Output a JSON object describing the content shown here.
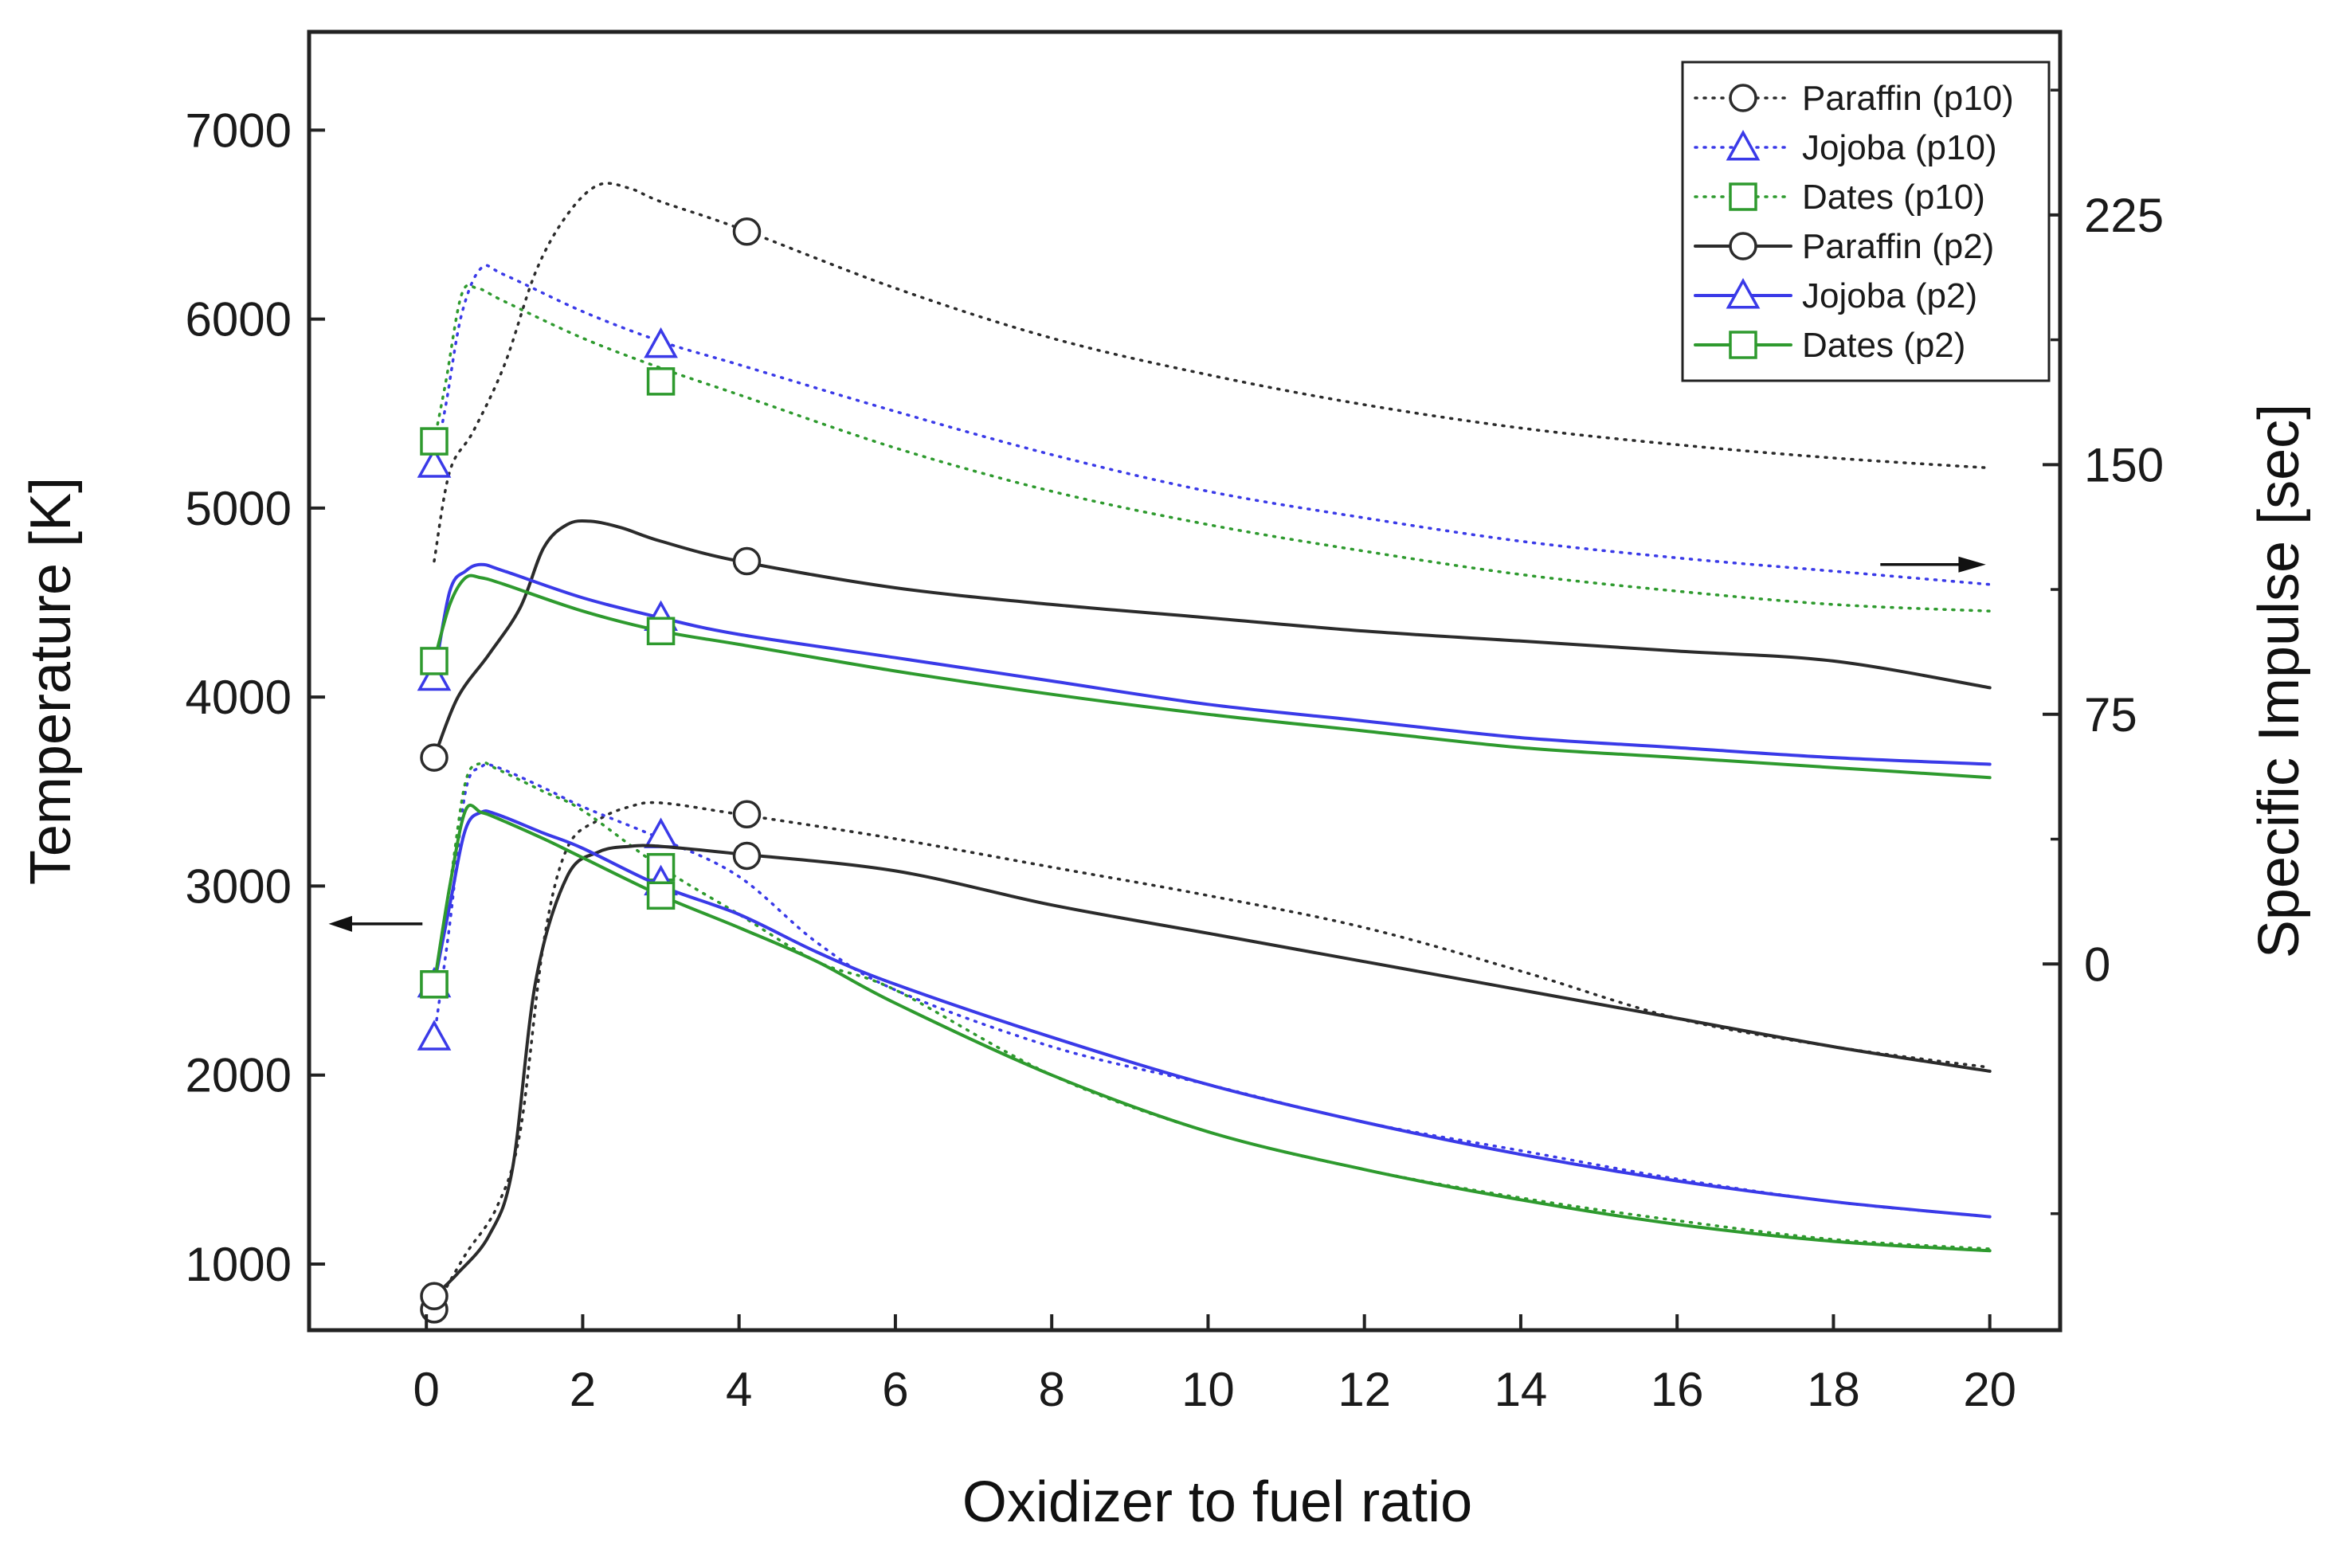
{
  "chart_data": {
    "type": "line",
    "title": "",
    "xlabel": "Oxidizer to fuel ratio",
    "ylabel_left": "Temperature [K]",
    "ylabel_right": "Specific Impulse [sec]",
    "xlim": [
      -1.5,
      20.9
    ],
    "ylim_left": [
      650,
      7520
    ],
    "ylim_right": [
      -110,
      280
    ],
    "x_ticks": [
      0,
      2,
      4,
      6,
      8,
      10,
      12,
      14,
      16,
      18,
      20
    ],
    "x_tick_labels": [
      "0",
      "2",
      "4",
      "6",
      "8",
      "10",
      "12",
      "14",
      "16",
      "18",
      "20"
    ],
    "left_ticks": [
      1000,
      2000,
      3000,
      4000,
      5000,
      6000,
      7000
    ],
    "left_tick_labels": [
      "1000",
      "2000",
      "3000",
      "4000",
      "5000",
      "6000",
      "7000"
    ],
    "right_ticks": [
      0,
      75,
      150,
      225
    ],
    "right_tick_labels": [
      "0",
      "75",
      "150",
      "225"
    ],
    "right_minor_ticks": [
      -75,
      37.5,
      112.5,
      187.5,
      262.5
    ],
    "arrow_left_label": "temperature curves read on left axis",
    "arrow_right_label": "specific impulse curves read on right axis",
    "legend_position": "top-right",
    "colors": {
      "paraffin": "#2b2b2b",
      "jojoba": "#3a3ae8",
      "dates": "#2e9a2e"
    },
    "series": [
      {
        "name": "Paraffin (p10)",
        "quantity": "Specific Impulse",
        "axis": "right",
        "style": "dotted",
        "color": "#2b2b2b",
        "marker": "circle",
        "x": [
          0.1,
          0.3,
          0.6,
          1.0,
          1.4,
          1.8,
          2.2,
          2.6,
          3.0,
          4.0,
          6.0,
          8.0,
          10.0,
          12.0,
          14.0,
          16.0,
          18.0,
          20.0
        ],
        "y": [
          121,
          148,
          160,
          180,
          208,
          225,
          234,
          233,
          229,
          221,
          203,
          188,
          177,
          168,
          161,
          156,
          152,
          149
        ],
        "marker_x": [
          4.1
        ],
        "marker_y": [
          220
        ]
      },
      {
        "name": "Jojoba (p10)",
        "quantity": "Specific Impulse",
        "axis": "right",
        "style": "dotted",
        "color": "#3a3ae8",
        "marker": "triangle",
        "x": [
          0.1,
          0.25,
          0.45,
          0.7,
          1.0,
          2.0,
          3.0,
          4.0,
          6.0,
          8.0,
          10.0,
          12.0,
          14.0,
          16.0,
          18.0,
          20.0
        ],
        "y": [
          150,
          168,
          195,
          209,
          207,
          196,
          187,
          180,
          166,
          153,
          142,
          134,
          127,
          122,
          118,
          114
        ],
        "marker_x": [
          0.1,
          3.0
        ],
        "marker_y": [
          150,
          186
        ]
      },
      {
        "name": "Dates (p10)",
        "quantity": "Specific Impulse",
        "axis": "right",
        "style": "dotted",
        "color": "#2e9a2e",
        "marker": "square",
        "x": [
          0.1,
          0.25,
          0.45,
          0.65,
          1.0,
          2.0,
          3.0,
          4.0,
          6.0,
          8.0,
          10.0,
          12.0,
          14.0,
          16.0,
          18.0,
          20.0
        ],
        "y": [
          157,
          175,
          201,
          203,
          199,
          188,
          179,
          171,
          155,
          142,
          132,
          124,
          117,
          112,
          108,
          106
        ],
        "marker_x": [
          0.1,
          3.0
        ],
        "marker_y": [
          157,
          175
        ]
      },
      {
        "name": "Paraffin (p2)",
        "quantity": "Specific Impulse",
        "axis": "right",
        "style": "solid",
        "color": "#2b2b2b",
        "marker": "circle",
        "x": [
          0.1,
          0.4,
          0.8,
          1.2,
          1.5,
          1.8,
          2.1,
          2.5,
          3.0,
          4.0,
          6.0,
          8.0,
          10.0,
          12.0,
          14.0,
          16.0,
          18.0,
          20.0
        ],
        "y": [
          62,
          80,
          93,
          107,
          125,
          132,
          133,
          131,
          127,
          121,
          113,
          108,
          104,
          100,
          97,
          94,
          91,
          83
        ],
        "marker_x": [
          0.1,
          4.1
        ],
        "marker_y": [
          62,
          121
        ]
      },
      {
        "name": "Jojoba (p2)",
        "quantity": "Specific Impulse",
        "axis": "right",
        "style": "solid",
        "color": "#3a3ae8",
        "marker": "triangle",
        "x": [
          0.1,
          0.3,
          0.5,
          0.7,
          1.0,
          2.0,
          3.0,
          4.0,
          6.0,
          8.0,
          10.0,
          12.0,
          14.0,
          16.0,
          18.0,
          20.0
        ],
        "y": [
          86,
          112,
          118,
          120,
          118,
          110,
          104,
          99,
          92,
          85,
          78,
          73,
          68,
          65,
          62,
          60
        ],
        "marker_x": [
          0.1,
          3.0
        ],
        "marker_y": [
          86,
          104
        ]
      },
      {
        "name": "Dates (p2)",
        "quantity": "Specific Impulse",
        "axis": "right",
        "style": "solid",
        "color": "#2e9a2e",
        "marker": "square",
        "x": [
          0.1,
          0.3,
          0.5,
          0.7,
          1.0,
          2.0,
          3.0,
          4.0,
          6.0,
          8.0,
          10.0,
          12.0,
          14.0,
          16.0,
          18.0,
          20.0
        ],
        "y": [
          91,
          108,
          116,
          116,
          114,
          106,
          100,
          96,
          88,
          81,
          75,
          70,
          65,
          62,
          59,
          56
        ],
        "marker_x": [
          0.1,
          3.0
        ],
        "marker_y": [
          91,
          100
        ]
      },
      {
        "name": "Paraffin (p10)",
        "quantity": "Temperature",
        "axis": "left",
        "style": "dotted",
        "color": "#2b2b2b",
        "marker": "circle",
        "x": [
          0.1,
          0.5,
          0.9,
          1.2,
          1.5,
          1.8,
          2.2,
          2.6,
          3.0,
          4.0,
          6.0,
          8.0,
          10.0,
          12.0,
          14.0,
          16.0,
          18.0,
          20.0
        ],
        "y": [
          760,
          1050,
          1300,
          1700,
          2700,
          3200,
          3350,
          3420,
          3440,
          3380,
          3250,
          3100,
          2950,
          2780,
          2550,
          2300,
          2150,
          2040
        ],
        "marker_x": [
          0.1,
          4.1
        ],
        "marker_y": [
          760,
          3380
        ]
      },
      {
        "name": "Jojoba (p10)",
        "quantity": "Temperature",
        "axis": "left",
        "style": "dotted",
        "color": "#3a3ae8",
        "marker": "triangle",
        "x": [
          0.1,
          0.3,
          0.5,
          0.7,
          0.9,
          1.5,
          2.0,
          3.0,
          4.0,
          5.0,
          6.0,
          8.0,
          10.0,
          12.0,
          14.0,
          16.0,
          18.0,
          20.0
        ],
        "y": [
          2200,
          2800,
          3500,
          3630,
          3630,
          3520,
          3420,
          3250,
          3050,
          2700,
          2450,
          2150,
          1950,
          1750,
          1600,
          1450,
          1330,
          1250
        ],
        "marker_x": [
          0.1,
          3.0
        ],
        "marker_y": [
          2200,
          3270
        ]
      },
      {
        "name": "Dates (p10)",
        "quantity": "Temperature",
        "axis": "left",
        "style": "dotted",
        "color": "#2e9a2e",
        "marker": "square",
        "x": [
          0.1,
          0.3,
          0.5,
          0.7,
          0.9,
          1.5,
          2.0,
          3.0,
          4.0,
          5.0,
          6.0,
          8.0,
          10.0,
          12.0,
          14.0,
          16.0,
          18.0,
          20.0
        ],
        "y": [
          2480,
          3000,
          3550,
          3650,
          3620,
          3500,
          3400,
          3100,
          2850,
          2600,
          2450,
          2000,
          1700,
          1500,
          1350,
          1230,
          1130,
          1080
        ],
        "marker_x": [
          0.1,
          3.0
        ],
        "marker_y": [
          2480,
          3100
        ]
      },
      {
        "name": "Paraffin (p2)",
        "quantity": "Temperature",
        "axis": "left",
        "style": "solid",
        "color": "#2b2b2b",
        "marker": "circle",
        "x": [
          0.1,
          0.4,
          0.8,
          1.1,
          1.4,
          1.8,
          2.2,
          2.6,
          3.0,
          4.0,
          6.0,
          8.0,
          10.0,
          12.0,
          14.0,
          16.0,
          18.0,
          20.0
        ],
        "y": [
          830,
          950,
          1150,
          1500,
          2500,
          3050,
          3180,
          3210,
          3210,
          3170,
          3080,
          2900,
          2750,
          2600,
          2450,
          2300,
          2150,
          2020
        ],
        "marker_x": [
          0.1,
          4.1
        ],
        "marker_y": [
          830,
          3160
        ]
      },
      {
        "name": "Jojoba (p2)",
        "quantity": "Temperature",
        "axis": "left",
        "style": "solid",
        "color": "#3a3ae8",
        "marker": "triangle",
        "x": [
          0.1,
          0.3,
          0.5,
          0.7,
          0.9,
          1.5,
          2.0,
          3.0,
          4.0,
          5.0,
          6.0,
          8.0,
          10.0,
          12.0,
          14.0,
          16.0,
          18.0,
          20.0
        ],
        "y": [
          2480,
          2900,
          3300,
          3390,
          3380,
          3280,
          3200,
          3000,
          2850,
          2650,
          2480,
          2200,
          1950,
          1750,
          1580,
          1440,
          1330,
          1250
        ],
        "marker_x": [
          0.1,
          3.0
        ],
        "marker_y": [
          2480,
          3020
        ]
      },
      {
        "name": "Dates (p2)",
        "quantity": "Temperature",
        "axis": "left",
        "style": "solid",
        "color": "#2e9a2e",
        "marker": "square",
        "x": [
          0.1,
          0.3,
          0.5,
          0.7,
          0.9,
          1.5,
          2.0,
          3.0,
          4.0,
          5.0,
          6.0,
          8.0,
          10.0,
          12.0,
          14.0,
          16.0,
          18.0,
          20.0
        ],
        "y": [
          2480,
          3000,
          3400,
          3390,
          3360,
          3250,
          3150,
          2950,
          2780,
          2600,
          2380,
          2000,
          1700,
          1500,
          1340,
          1210,
          1120,
          1070
        ],
        "marker_x": [
          0.1,
          3.0
        ],
        "marker_y": [
          2480,
          2950
        ]
      }
    ],
    "legend": [
      {
        "label": "Paraffin (p10)",
        "style": "dotted",
        "color": "#2b2b2b",
        "marker": "circle"
      },
      {
        "label": "Jojoba (p10)",
        "style": "dotted",
        "color": "#3a3ae8",
        "marker": "triangle"
      },
      {
        "label": "Dates (p10)",
        "style": "dotted",
        "color": "#2e9a2e",
        "marker": "square"
      },
      {
        "label": "Paraffin (p2)",
        "style": "solid",
        "color": "#2b2b2b",
        "marker": "circle"
      },
      {
        "label": "Jojoba (p2)",
        "style": "solid",
        "color": "#3a3ae8",
        "marker": "triangle"
      },
      {
        "label": "Dates (p2)",
        "style": "solid",
        "color": "#2e9a2e",
        "marker": "square"
      }
    ]
  }
}
